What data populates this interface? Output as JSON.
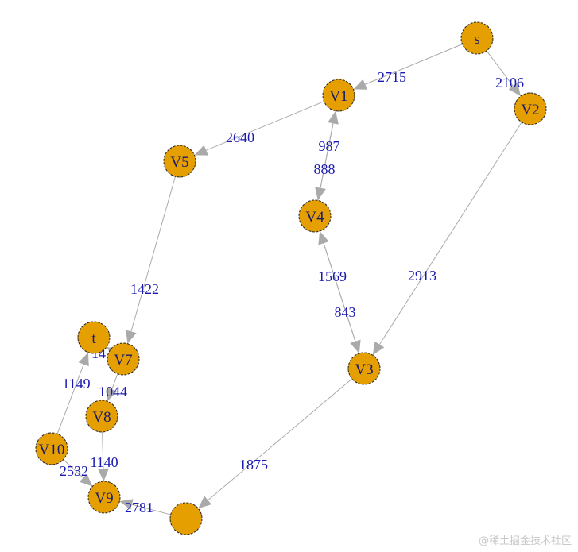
{
  "colors": {
    "node_fill": "#E69F00",
    "node_stroke": "#222222",
    "edge": "#AAAAAA",
    "edge_label": "#1A1AB0",
    "node_label": "#1A1A6A"
  },
  "nodes": [
    {
      "id": "s",
      "label": "s"
    },
    {
      "id": "V1",
      "label": "V1"
    },
    {
      "id": "V2",
      "label": "V2"
    },
    {
      "id": "V5",
      "label": "V5"
    },
    {
      "id": "V4",
      "label": "V4"
    },
    {
      "id": "V3",
      "label": "V3"
    },
    {
      "id": "t",
      "label": "t"
    },
    {
      "id": "V7",
      "label": "V7"
    },
    {
      "id": "V8",
      "label": "V8"
    },
    {
      "id": "V10",
      "label": "V10"
    },
    {
      "id": "V9",
      "label": "V9"
    },
    {
      "id": "V6",
      "label": ""
    }
  ],
  "edges": [
    {
      "from": "s",
      "to": "V1",
      "label": "2715"
    },
    {
      "from": "s",
      "to": "V2",
      "label": "2106"
    },
    {
      "from": "V1",
      "to": "V5",
      "label": "2640"
    },
    {
      "from": "V4",
      "to": "V1",
      "label": "987"
    },
    {
      "from": "V1",
      "to": "V4",
      "label": "888"
    },
    {
      "from": "V2",
      "to": "V3",
      "label": "2913"
    },
    {
      "from": "V3",
      "to": "V4",
      "label": "1569"
    },
    {
      "from": "V4",
      "to": "V3",
      "label": "843"
    },
    {
      "from": "V5",
      "to": "V7",
      "label": "1422"
    },
    {
      "from": "V7",
      "to": "t",
      "label": "14"
    },
    {
      "from": "V7",
      "to": "V8",
      "label": "1044"
    },
    {
      "from": "V8",
      "to": "V9",
      "label": "1140"
    },
    {
      "from": "V10",
      "to": "V9",
      "label": "2532"
    },
    {
      "from": "V10",
      "to": "t",
      "label": "1149"
    },
    {
      "from": "V3",
      "to": "V6",
      "label": "1875"
    },
    {
      "from": "V6",
      "to": "V9",
      "label": "2781"
    }
  ],
  "watermark": "@稀土掘金技术社区"
}
